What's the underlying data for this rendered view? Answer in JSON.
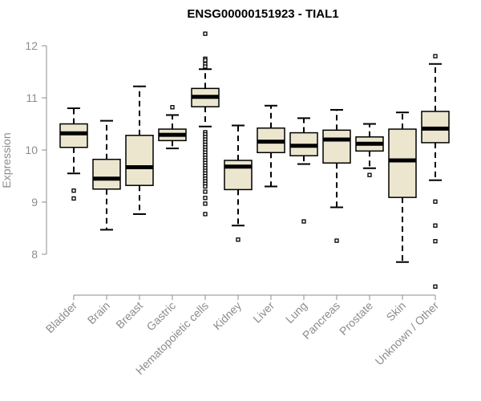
{
  "chart_data": {
    "type": "boxplot",
    "title": "ENSG00000151923 - TIAL1",
    "xlabel": "",
    "ylabel": "Expression",
    "ylim": [
      7.3,
      12.3
    ],
    "yticks": [
      8,
      9,
      10,
      11,
      12
    ],
    "box_fill": "#ece6cf",
    "axis_color": "#8c8c8c",
    "categories": [
      "Bladder",
      "Brain",
      "Breast",
      "Gastric",
      "Hematopoietic cells",
      "Kidney",
      "Liver",
      "Lung",
      "Pancreas",
      "Prostate",
      "Skin",
      "Unknown / Other"
    ],
    "boxes": [
      {
        "name": "Bladder",
        "whisker_low": 9.55,
        "q1": 10.05,
        "median": 10.32,
        "q3": 10.5,
        "whisker_high": 10.8,
        "outliers": [
          9.22,
          9.07
        ]
      },
      {
        "name": "Brain",
        "whisker_low": 8.47,
        "q1": 9.25,
        "median": 9.45,
        "q3": 9.82,
        "whisker_high": 10.56,
        "outliers": []
      },
      {
        "name": "Breast",
        "whisker_low": 8.77,
        "q1": 9.32,
        "median": 9.67,
        "q3": 10.28,
        "whisker_high": 11.22,
        "outliers": []
      },
      {
        "name": "Gastric",
        "whisker_low": 10.03,
        "q1": 10.18,
        "median": 10.29,
        "q3": 10.4,
        "whisker_high": 10.67,
        "outliers": [
          10.82
        ]
      },
      {
        "name": "Hematopoietic cells",
        "whisker_low": 10.45,
        "q1": 10.83,
        "median": 11.02,
        "q3": 11.18,
        "whisker_high": 11.55,
        "outliers": [
          12.23,
          11.75,
          11.72,
          11.65,
          11.6,
          10.34,
          10.3,
          10.25,
          10.2,
          10.15,
          10.1,
          10.05,
          10.0,
          9.95,
          9.9,
          9.85,
          9.8,
          9.75,
          9.7,
          9.65,
          9.6,
          9.55,
          9.5,
          9.45,
          9.4,
          9.35,
          9.3,
          9.2,
          9.08,
          8.97,
          8.77
        ]
      },
      {
        "name": "Kidney",
        "whisker_low": 8.55,
        "q1": 9.24,
        "median": 9.68,
        "q3": 9.8,
        "whisker_high": 10.47,
        "outliers": [
          8.28
        ]
      },
      {
        "name": "Liver",
        "whisker_low": 9.3,
        "q1": 9.95,
        "median": 10.16,
        "q3": 10.42,
        "whisker_high": 10.85,
        "outliers": []
      },
      {
        "name": "Lung",
        "whisker_low": 9.73,
        "q1": 9.89,
        "median": 10.08,
        "q3": 10.33,
        "whisker_high": 10.61,
        "outliers": [
          8.63
        ]
      },
      {
        "name": "Pancreas",
        "whisker_low": 8.9,
        "q1": 9.75,
        "median": 10.2,
        "q3": 10.38,
        "whisker_high": 10.77,
        "outliers": [
          8.26
        ]
      },
      {
        "name": "Prostate",
        "whisker_low": 9.65,
        "q1": 9.98,
        "median": 10.12,
        "q3": 10.25,
        "whisker_high": 10.5,
        "outliers": [
          9.52
        ]
      },
      {
        "name": "Skin",
        "whisker_low": 7.85,
        "q1": 9.09,
        "median": 9.8,
        "q3": 10.4,
        "whisker_high": 10.72,
        "outliers": []
      },
      {
        "name": "Unknown / Other",
        "whisker_low": 9.42,
        "q1": 10.14,
        "median": 10.41,
        "q3": 10.74,
        "whisker_high": 11.65,
        "outliers": [
          11.8,
          9.01,
          8.55,
          8.25,
          7.38
        ]
      }
    ]
  }
}
